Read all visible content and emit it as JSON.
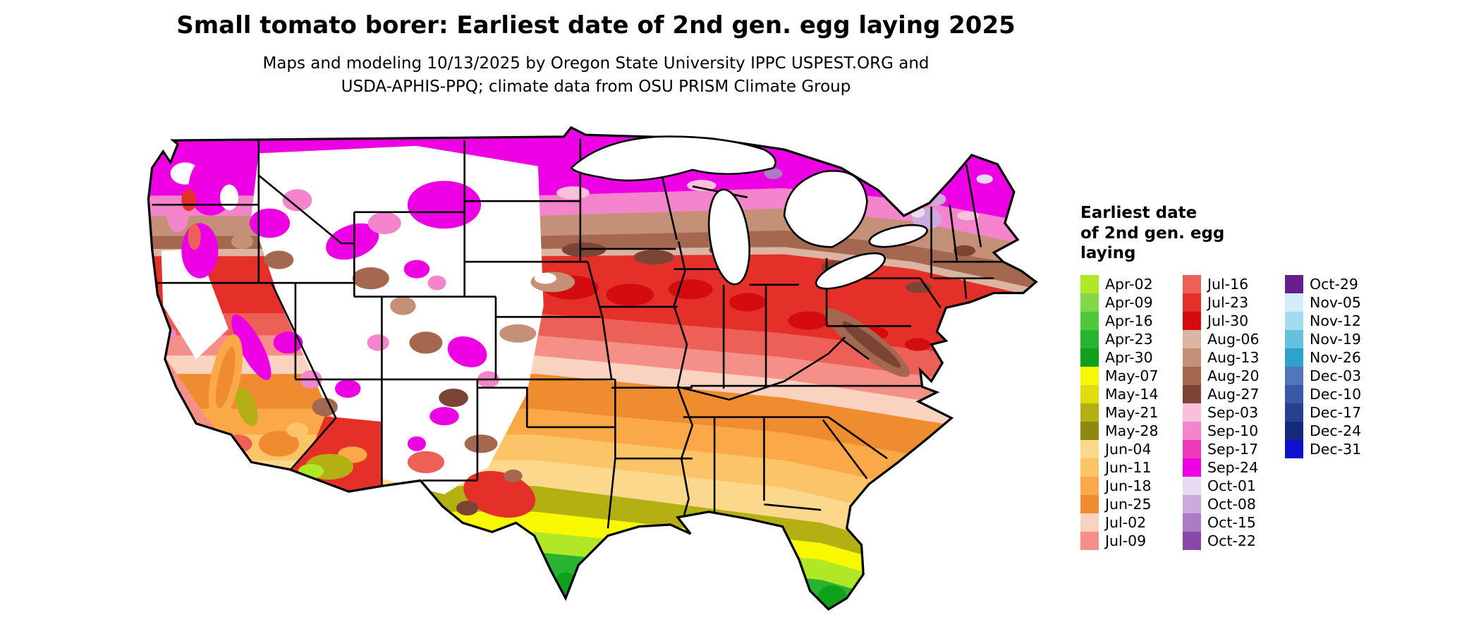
{
  "header": {
    "title": "Small tomato borer: Earliest date of 2nd gen. egg laying 2025",
    "subtitle_line1": "Maps and modeling 10/13/2025 by Oregon State University IPPC USPEST.ORG and",
    "subtitle_line2": "USDA-APHIS-PPQ; climate data from OSU PRISM Climate Group"
  },
  "legend": {
    "title_lines": [
      "Earliest date",
      "of 2nd gen. egg",
      "laying"
    ],
    "columns": [
      [
        {
          "label": "Apr-02",
          "color": "#b0e828"
        },
        {
          "label": "Apr-09",
          "color": "#84d848"
        },
        {
          "label": "Apr-16",
          "color": "#50c83c"
        },
        {
          "label": "Apr-23",
          "color": "#28b430"
        },
        {
          "label": "Apr-30",
          "color": "#10a01c"
        },
        {
          "label": "May-07",
          "color": "#f8f800"
        },
        {
          "label": "May-14",
          "color": "#e0dc10"
        },
        {
          "label": "May-21",
          "color": "#b4b014"
        },
        {
          "label": "May-28",
          "color": "#8c8810"
        },
        {
          "label": "Jun-04",
          "color": "#fcd88c"
        },
        {
          "label": "Jun-11",
          "color": "#fcc468"
        },
        {
          "label": "Jun-18",
          "color": "#faa848"
        },
        {
          "label": "Jun-25",
          "color": "#f08c30"
        },
        {
          "label": "Jul-02",
          "color": "#fad2c0"
        },
        {
          "label": "Jul-09",
          "color": "#f49088"
        }
      ],
      [
        {
          "label": "Jul-16",
          "color": "#ec6058"
        },
        {
          "label": "Jul-23",
          "color": "#e43028"
        },
        {
          "label": "Jul-30",
          "color": "#d40c10"
        },
        {
          "label": "Aug-06",
          "color": "#dcb4a4"
        },
        {
          "label": "Aug-13",
          "color": "#c49078"
        },
        {
          "label": "Aug-20",
          "color": "#a46850"
        },
        {
          "label": "Aug-27",
          "color": "#7c4434"
        },
        {
          "label": "Sep-03",
          "color": "#f8c0dc"
        },
        {
          "label": "Sep-10",
          "color": "#f484cc"
        },
        {
          "label": "Sep-17",
          "color": "#f038bc"
        },
        {
          "label": "Sep-24",
          "color": "#ee00e4"
        },
        {
          "label": "Oct-01",
          "color": "#e8daf0"
        },
        {
          "label": "Oct-08",
          "color": "#ccaade"
        },
        {
          "label": "Oct-15",
          "color": "#aa7cc4"
        },
        {
          "label": "Oct-22",
          "color": "#8848a8"
        }
      ],
      [
        {
          "label": "Oct-29",
          "color": "#661e8c"
        },
        {
          "label": "Nov-05",
          "color": "#d2eef8"
        },
        {
          "label": "Nov-12",
          "color": "#a2dcee"
        },
        {
          "label": "Nov-19",
          "color": "#64c2dc"
        },
        {
          "label": "Nov-26",
          "color": "#2ea2c8"
        },
        {
          "label": "Dec-03",
          "color": "#5078b8"
        },
        {
          "label": "Dec-10",
          "color": "#3858a8"
        },
        {
          "label": "Dec-17",
          "color": "#284090"
        },
        {
          "label": "Dec-24",
          "color": "#162a7c"
        },
        {
          "label": "Dec-31",
          "color": "#1010cc"
        }
      ]
    ]
  }
}
